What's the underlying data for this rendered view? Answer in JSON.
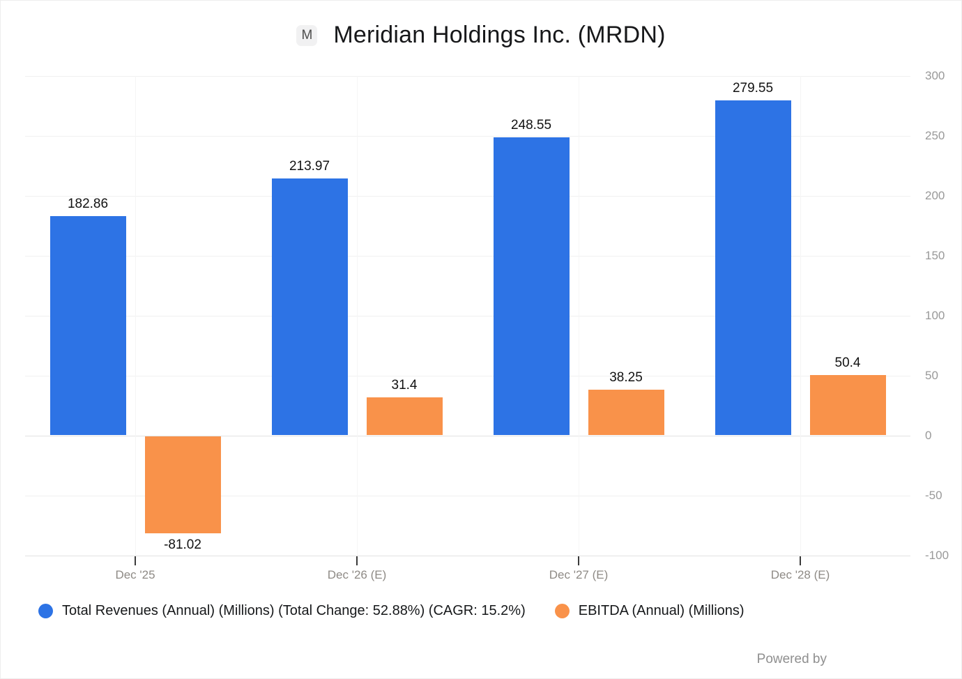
{
  "header": {
    "logo_letter": "M"
  },
  "footer": {
    "powered_by": "Powered by"
  },
  "chart_data": {
    "type": "bar",
    "title": "Meridian Holdings Inc. (MRDN)",
    "categories": [
      "Dec '25",
      "Dec '26 (E)",
      "Dec '27 (E)",
      "Dec '28 (E)"
    ],
    "series": [
      {
        "name": "Total Revenues (Annual) (Millions) (Total Change: 52.88%) (CAGR: 15.2%)",
        "color": "#2d73e5",
        "values": [
          182.86,
          213.97,
          248.55,
          279.55
        ]
      },
      {
        "name": "EBITDA (Annual) (Millions)",
        "color": "#f9924a",
        "values": [
          -81.02,
          31.4,
          38.25,
          50.4
        ]
      }
    ],
    "y_ticks": [
      300,
      250,
      200,
      150,
      100,
      50,
      0,
      -50,
      -100
    ],
    "ylim": [
      -100,
      300
    ],
    "grid": true,
    "legend_position": "bottom",
    "data_labels": true
  }
}
